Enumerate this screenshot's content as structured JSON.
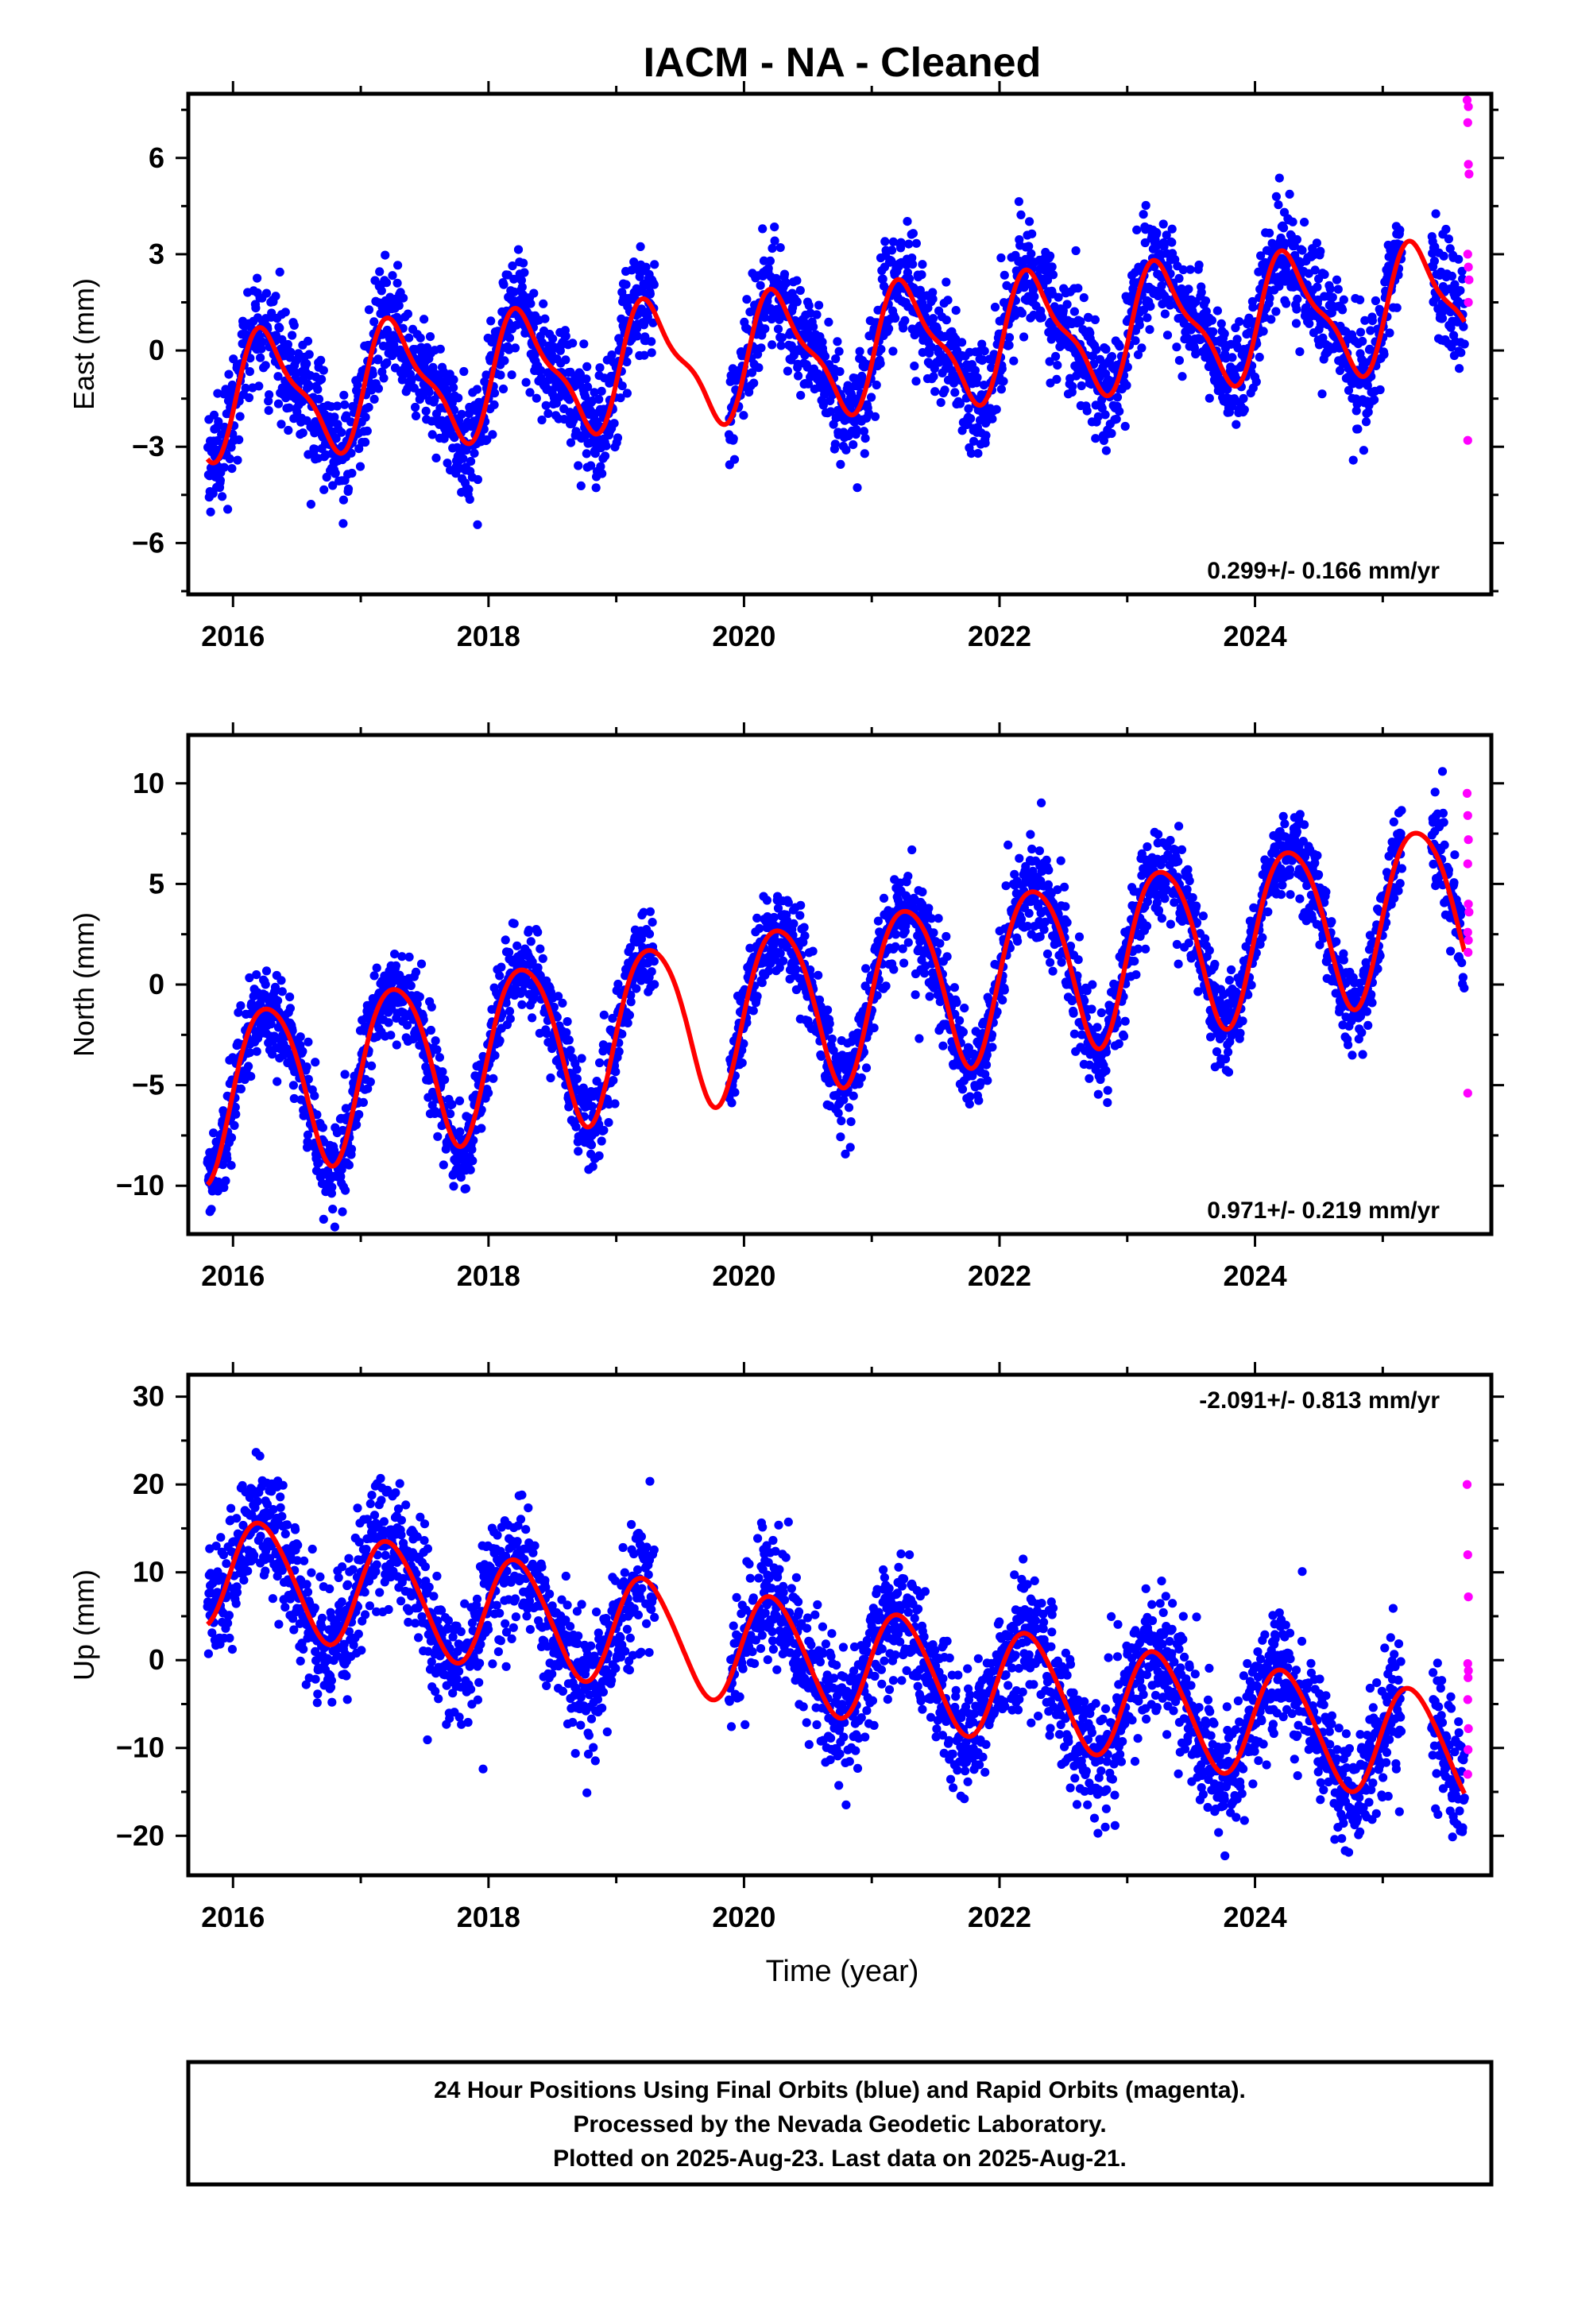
{
  "title": "IACM  - NA - Cleaned",
  "x_axis_label": "Time (year)",
  "footer": {
    "line1": "24 Hour Positions Using Final Orbits (blue) and Rapid Orbits (magenta).",
    "line2": "Processed by the Nevada Geodetic Laboratory.",
    "line3": "Plotted on 2025-Aug-23. Last data on 2025-Aug-21."
  },
  "colors": {
    "final_orbits": "#0000ff",
    "rapid_orbits": "#ff00ff",
    "model_fit": "#ff0000",
    "frame": "#000000"
  },
  "chart_data": [
    {
      "type": "scatter",
      "component": "East",
      "ylabel": "East (mm)",
      "rate_label": "0.299+/- 0.166 mm/yr",
      "rate_position": "bottom-right",
      "xlim": [
        2015.65,
        2025.85
      ],
      "ylim": [
        -7.6,
        8.0
      ],
      "xticks": [
        2016,
        2018,
        2020,
        2022,
        2024
      ],
      "yticks": [
        -6,
        -3,
        0,
        3,
        6
      ],
      "data_start": 2015.8,
      "data_end": 2025.64,
      "gaps": [
        [
          2019.3,
          2019.88
        ],
        [
          2025.15,
          2025.38
        ]
      ],
      "model": {
        "a": 0.0,
        "b": 0.299,
        "c": 1.75,
        "d": -0.3,
        "e": 0.55,
        "f": -0.2,
        "t0": 2020.7
      },
      "noise_sd": 0.85,
      "rapid_orbits": [
        {
          "x": 2025.66,
          "y": 7.8
        },
        {
          "x": 2025.67,
          "y": 7.6
        },
        {
          "x": 2025.665,
          "y": 7.1
        },
        {
          "x": 2025.67,
          "y": 5.8
        },
        {
          "x": 2025.675,
          "y": 5.5
        },
        {
          "x": 2025.665,
          "y": 3.0
        },
        {
          "x": 2025.67,
          "y": 2.6
        },
        {
          "x": 2025.675,
          "y": 2.2
        },
        {
          "x": 2025.67,
          "y": 1.5
        },
        {
          "x": 2025.665,
          "y": -2.8
        }
      ]
    },
    {
      "type": "scatter",
      "component": "North",
      "ylabel": "North (mm)",
      "rate_label": "0.971+/- 0.219 mm/yr",
      "rate_position": "bottom-right",
      "xlim": [
        2015.65,
        2025.85
      ],
      "ylim": [
        -12.4,
        12.4
      ],
      "xticks": [
        2016,
        2018,
        2020,
        2022,
        2024
      ],
      "yticks": [
        -10,
        -5,
        0,
        5,
        10
      ],
      "data_start": 2015.8,
      "data_end": 2025.64,
      "gaps": [
        [
          2019.3,
          2019.88
        ],
        [
          2025.15,
          2025.38
        ]
      ],
      "model": {
        "a": -0.6,
        "b": 0.971,
        "c": 4.1,
        "d": -0.6,
        "e": 0.3,
        "f": 0.4,
        "t0": 2020.7
      },
      "noise_sd": 1.1,
      "rapid_orbits": [
        {
          "x": 2025.66,
          "y": 9.5
        },
        {
          "x": 2025.665,
          "y": 8.4
        },
        {
          "x": 2025.67,
          "y": 7.2
        },
        {
          "x": 2025.665,
          "y": 6.0
        },
        {
          "x": 2025.67,
          "y": 4.0
        },
        {
          "x": 2025.675,
          "y": 3.6
        },
        {
          "x": 2025.665,
          "y": 2.6
        },
        {
          "x": 2025.67,
          "y": 2.2
        },
        {
          "x": 2025.668,
          "y": 1.6
        },
        {
          "x": 2025.665,
          "y": -5.4
        }
      ]
    },
    {
      "type": "scatter",
      "component": "Up",
      "ylabel": "Up (mm)",
      "rate_label": "-2.091+/- 0.813 mm/yr",
      "rate_position": "top-right",
      "xlim": [
        2015.65,
        2025.85
      ],
      "ylim": [
        -24.5,
        32.5
      ],
      "xticks": [
        2016,
        2018,
        2020,
        2022,
        2024
      ],
      "yticks": [
        -20,
        -10,
        0,
        10,
        20,
        30
      ],
      "data_start": 2015.8,
      "data_end": 2025.64,
      "gaps": [
        [
          2019.3,
          2019.88
        ],
        [
          2025.15,
          2025.38
        ]
      ],
      "model": {
        "a": 0.0,
        "b": -2.091,
        "c": 6.2,
        "d": 0.8,
        "e": 0.5,
        "f": 0.3,
        "t0": 2020.7
      },
      "noise_sd": 3.6,
      "rapid_orbits": [
        {
          "x": 2025.66,
          "y": 20.0
        },
        {
          "x": 2025.665,
          "y": 12.0
        },
        {
          "x": 2025.67,
          "y": 7.2
        },
        {
          "x": 2025.665,
          "y": -0.4
        },
        {
          "x": 2025.67,
          "y": -1.2
        },
        {
          "x": 2025.668,
          "y": -2.0
        },
        {
          "x": 2025.665,
          "y": -4.5
        },
        {
          "x": 2025.67,
          "y": -7.8
        },
        {
          "x": 2025.668,
          "y": -10.2
        },
        {
          "x": 2025.665,
          "y": -13.0
        }
      ]
    }
  ]
}
